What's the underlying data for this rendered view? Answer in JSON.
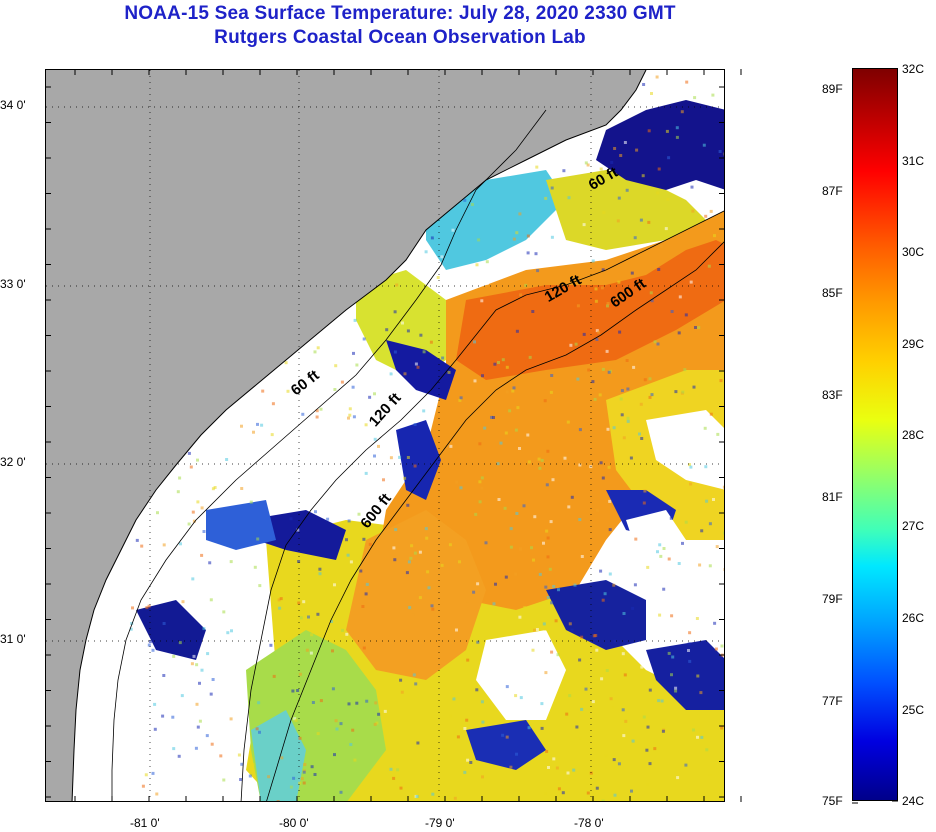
{
  "header": {
    "title": "NOAA-15 Sea Surface Temperature:  July 28, 2020 2330 GMT",
    "subtitle": "Rutgers Coastal Ocean Observation Lab"
  },
  "map": {
    "lat_labels": [
      "34 0'",
      "33 0'",
      "32 0'",
      "31 0'"
    ],
    "lon_labels": [
      "-81 0'",
      "-80 0'",
      "-79 0'",
      "-78 0'"
    ],
    "isobath_labels": [
      "60 ft",
      "120 ft",
      "600 ft",
      "120 ft",
      "600 ft",
      "60 ft"
    ],
    "colors": {
      "land": "#a8a8a8",
      "cloud": "#ffffff",
      "coast": "#000000"
    }
  },
  "colorbar": {
    "fahrenheit_labels": [
      "89F",
      "87F",
      "85F",
      "83F",
      "81F",
      "79F",
      "77F",
      "75F"
    ],
    "celsius_labels": [
      "32C",
      "31C",
      "30C",
      "29C",
      "28C",
      "27C",
      "26C",
      "25C",
      "24C"
    ],
    "range_c": [
      24,
      32
    ],
    "colormap": "jet"
  }
}
